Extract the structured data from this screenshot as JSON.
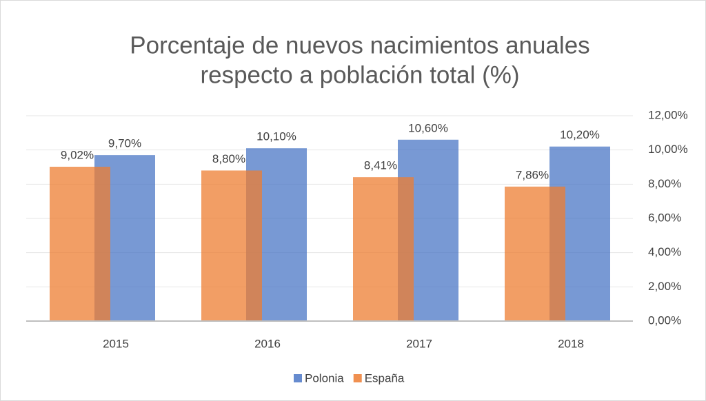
{
  "chart_data": {
    "type": "bar",
    "title": [
      "Porcentaje de nuevos nacimientos anuales",
      "respecto a población total (%)"
    ],
    "categories": [
      "2015",
      "2016",
      "2017",
      "2018"
    ],
    "series": [
      {
        "name": "Polonia",
        "color": "#4472c4",
        "values": [
          9.7,
          10.1,
          10.6,
          10.2
        ],
        "value_labels": [
          "9,70%",
          "10,10%",
          "10,60%",
          "10,20%"
        ],
        "axis": "y2"
      },
      {
        "name": "España",
        "color": "#ed7d31",
        "values": [
          9.02,
          8.8,
          8.41,
          7.86
        ],
        "value_labels": [
          "9,02%",
          "8,80%",
          "8,41%",
          "7,86%"
        ],
        "axis": "y2"
      }
    ],
    "y2lim": [
      0,
      12
    ],
    "y2ticks": [
      {
        "value": 0,
        "label": "0,00%"
      },
      {
        "value": 2,
        "label": "2,00%"
      },
      {
        "value": 4,
        "label": "4,00%"
      },
      {
        "value": 6,
        "label": "6,00%"
      },
      {
        "value": 8,
        "label": "8,00%"
      },
      {
        "value": 10,
        "label": "10,00%"
      },
      {
        "value": 12,
        "label": "12,00%"
      }
    ],
    "grid": true,
    "legend": "bottom"
  }
}
